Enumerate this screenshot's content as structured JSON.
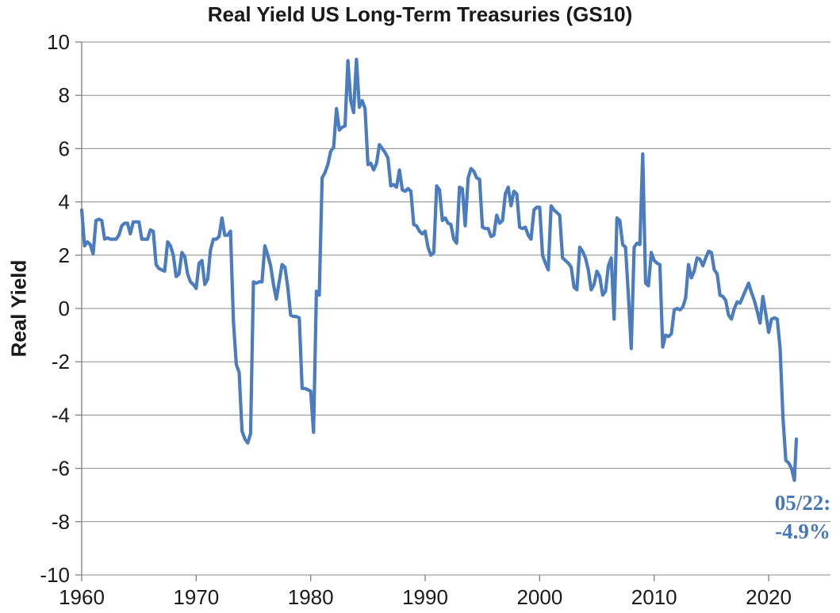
{
  "chart_data": {
    "type": "line",
    "title": "Real Yield US Long-Term Treasuries (GS10)",
    "xlabel": "",
    "ylabel": "Real Yield",
    "x_ticks": [
      1960,
      1970,
      1980,
      1990,
      2000,
      2010,
      2020
    ],
    "y_ticks": [
      10,
      8,
      6,
      4,
      2,
      0,
      -2,
      -4,
      -6,
      -8,
      -10
    ],
    "xlim": [
      1960,
      2025.4
    ],
    "ylim": [
      -10,
      10
    ],
    "grid": "horizontal",
    "legend": "none",
    "colors": {
      "line": "#4B7CBE",
      "grid": "#8A8A8A",
      "axis": "#7F7F7F",
      "text": "#1A1A1A",
      "annotation": "#4677B8"
    },
    "annotation": {
      "line1": "05/22:",
      "line2": "-4.9%",
      "x": 2022.42,
      "y": -4.9
    },
    "series": [
      {
        "name": "Real Yield",
        "points": [
          [
            1960.0,
            3.7
          ],
          [
            1960.25,
            2.35
          ],
          [
            1960.5,
            2.5
          ],
          [
            1960.75,
            2.4
          ],
          [
            1961.0,
            2.05
          ],
          [
            1961.25,
            3.3
          ],
          [
            1961.5,
            3.35
          ],
          [
            1961.75,
            3.3
          ],
          [
            1962.0,
            2.6
          ],
          [
            1962.25,
            2.65
          ],
          [
            1962.5,
            2.6
          ],
          [
            1962.75,
            2.6
          ],
          [
            1963.0,
            2.6
          ],
          [
            1963.25,
            2.75
          ],
          [
            1963.5,
            3.1
          ],
          [
            1963.75,
            3.2
          ],
          [
            1964.0,
            3.2
          ],
          [
            1964.25,
            2.8
          ],
          [
            1964.5,
            3.25
          ],
          [
            1964.75,
            3.25
          ],
          [
            1965.0,
            3.25
          ],
          [
            1965.25,
            2.6
          ],
          [
            1965.5,
            2.6
          ],
          [
            1965.75,
            2.6
          ],
          [
            1966.0,
            2.95
          ],
          [
            1966.25,
            2.9
          ],
          [
            1966.5,
            1.65
          ],
          [
            1966.75,
            1.5
          ],
          [
            1967.0,
            1.45
          ],
          [
            1967.25,
            1.4
          ],
          [
            1967.5,
            2.5
          ],
          [
            1967.75,
            2.35
          ],
          [
            1968.0,
            2.0
          ],
          [
            1968.25,
            1.2
          ],
          [
            1968.5,
            1.3
          ],
          [
            1968.75,
            2.1
          ],
          [
            1969.0,
            1.95
          ],
          [
            1969.25,
            1.3
          ],
          [
            1969.5,
            1.0
          ],
          [
            1969.75,
            0.9
          ],
          [
            1970.0,
            0.75
          ],
          [
            1970.25,
            1.7
          ],
          [
            1970.5,
            1.8
          ],
          [
            1970.75,
            0.9
          ],
          [
            1971.0,
            1.1
          ],
          [
            1971.25,
            2.2
          ],
          [
            1971.5,
            2.6
          ],
          [
            1971.75,
            2.6
          ],
          [
            1972.0,
            2.7
          ],
          [
            1972.25,
            3.4
          ],
          [
            1972.5,
            2.75
          ],
          [
            1972.75,
            2.75
          ],
          [
            1973.0,
            2.9
          ],
          [
            1973.25,
            -0.5
          ],
          [
            1973.5,
            -2.1
          ],
          [
            1973.75,
            -2.4
          ],
          [
            1974.0,
            -4.6
          ],
          [
            1974.25,
            -4.9
          ],
          [
            1974.5,
            -5.05
          ],
          [
            1974.75,
            -4.7
          ],
          [
            1975.0,
            1.0
          ],
          [
            1975.25,
            0.95
          ],
          [
            1975.5,
            1.0
          ],
          [
            1975.75,
            1.0
          ],
          [
            1976.0,
            2.35
          ],
          [
            1976.25,
            2.0
          ],
          [
            1976.5,
            1.6
          ],
          [
            1976.75,
            0.9
          ],
          [
            1977.0,
            0.35
          ],
          [
            1977.25,
            1.0
          ],
          [
            1977.5,
            1.65
          ],
          [
            1977.75,
            1.55
          ],
          [
            1978.0,
            0.8
          ],
          [
            1978.25,
            -0.25
          ],
          [
            1978.5,
            -0.3
          ],
          [
            1978.75,
            -0.3
          ],
          [
            1979.0,
            -0.35
          ],
          [
            1979.25,
            -3.0
          ],
          [
            1979.5,
            -3.0
          ],
          [
            1979.75,
            -3.05
          ],
          [
            1980.0,
            -3.1
          ],
          [
            1980.25,
            -4.65
          ],
          [
            1980.5,
            0.65
          ],
          [
            1980.75,
            0.5
          ],
          [
            1981.0,
            4.9
          ],
          [
            1981.25,
            5.1
          ],
          [
            1981.5,
            5.4
          ],
          [
            1981.75,
            5.9
          ],
          [
            1982.0,
            6.05
          ],
          [
            1982.25,
            7.5
          ],
          [
            1982.5,
            6.7
          ],
          [
            1982.75,
            6.8
          ],
          [
            1983.0,
            6.85
          ],
          [
            1983.25,
            9.3
          ],
          [
            1983.5,
            7.8
          ],
          [
            1983.75,
            7.35
          ],
          [
            1984.0,
            9.35
          ],
          [
            1984.25,
            7.55
          ],
          [
            1984.5,
            7.8
          ],
          [
            1984.75,
            7.5
          ],
          [
            1985.0,
            5.4
          ],
          [
            1985.25,
            5.45
          ],
          [
            1985.5,
            5.2
          ],
          [
            1985.75,
            5.45
          ],
          [
            1986.0,
            6.15
          ],
          [
            1986.25,
            6.0
          ],
          [
            1986.5,
            5.85
          ],
          [
            1986.75,
            5.65
          ],
          [
            1987.0,
            4.6
          ],
          [
            1987.25,
            4.65
          ],
          [
            1987.5,
            4.55
          ],
          [
            1987.75,
            5.2
          ],
          [
            1988.0,
            4.45
          ],
          [
            1988.25,
            4.4
          ],
          [
            1988.5,
            4.5
          ],
          [
            1988.75,
            4.4
          ],
          [
            1989.0,
            3.15
          ],
          [
            1989.25,
            3.1
          ],
          [
            1989.5,
            2.9
          ],
          [
            1989.75,
            2.8
          ],
          [
            1990.0,
            2.9
          ],
          [
            1990.25,
            2.3
          ],
          [
            1990.5,
            2.0
          ],
          [
            1990.75,
            2.1
          ],
          [
            1991.0,
            4.6
          ],
          [
            1991.25,
            4.45
          ],
          [
            1991.5,
            3.3
          ],
          [
            1991.75,
            3.4
          ],
          [
            1992.0,
            3.2
          ],
          [
            1992.25,
            3.15
          ],
          [
            1992.5,
            2.6
          ],
          [
            1992.75,
            2.45
          ],
          [
            1993.0,
            4.55
          ],
          [
            1993.25,
            4.5
          ],
          [
            1993.5,
            3.1
          ],
          [
            1993.75,
            4.9
          ],
          [
            1994.0,
            5.25
          ],
          [
            1994.25,
            5.15
          ],
          [
            1994.5,
            4.9
          ],
          [
            1994.75,
            4.85
          ],
          [
            1995.0,
            3.05
          ],
          [
            1995.25,
            3.0
          ],
          [
            1995.5,
            3.0
          ],
          [
            1995.75,
            2.7
          ],
          [
            1996.0,
            2.75
          ],
          [
            1996.25,
            3.5
          ],
          [
            1996.5,
            3.2
          ],
          [
            1996.75,
            3.3
          ],
          [
            1997.0,
            4.3
          ],
          [
            1997.25,
            4.55
          ],
          [
            1997.5,
            3.85
          ],
          [
            1997.75,
            4.4
          ],
          [
            1998.0,
            4.3
          ],
          [
            1998.25,
            3.05
          ],
          [
            1998.5,
            3.0
          ],
          [
            1998.75,
            3.05
          ],
          [
            1999.0,
            2.75
          ],
          [
            1999.25,
            2.6
          ],
          [
            1999.5,
            3.7
          ],
          [
            1999.75,
            3.8
          ],
          [
            2000.0,
            3.8
          ],
          [
            2000.25,
            2.0
          ],
          [
            2000.5,
            1.7
          ],
          [
            2000.75,
            1.45
          ],
          [
            2001.0,
            3.85
          ],
          [
            2001.25,
            3.7
          ],
          [
            2001.5,
            3.6
          ],
          [
            2001.75,
            3.5
          ],
          [
            2002.0,
            1.9
          ],
          [
            2002.25,
            1.8
          ],
          [
            2002.5,
            1.7
          ],
          [
            2002.75,
            1.55
          ],
          [
            2003.0,
            0.8
          ],
          [
            2003.25,
            0.7
          ],
          [
            2003.5,
            2.3
          ],
          [
            2003.75,
            2.15
          ],
          [
            2004.0,
            1.9
          ],
          [
            2004.25,
            1.45
          ],
          [
            2004.5,
            0.7
          ],
          [
            2004.75,
            0.9
          ],
          [
            2005.0,
            1.4
          ],
          [
            2005.25,
            1.2
          ],
          [
            2005.5,
            0.5
          ],
          [
            2005.75,
            0.65
          ],
          [
            2006.0,
            1.6
          ],
          [
            2006.25,
            1.9
          ],
          [
            2006.5,
            -0.4
          ],
          [
            2006.75,
            3.4
          ],
          [
            2007.0,
            3.3
          ],
          [
            2007.25,
            2.4
          ],
          [
            2007.5,
            2.3
          ],
          [
            2007.75,
            0.5
          ],
          [
            2008.0,
            -1.5
          ],
          [
            2008.25,
            2.3
          ],
          [
            2008.5,
            2.45
          ],
          [
            2008.75,
            2.4
          ],
          [
            2009.0,
            5.8
          ],
          [
            2009.25,
            0.95
          ],
          [
            2009.5,
            0.85
          ],
          [
            2009.75,
            2.1
          ],
          [
            2010.0,
            1.8
          ],
          [
            2010.25,
            1.7
          ],
          [
            2010.5,
            1.65
          ],
          [
            2010.75,
            -1.45
          ],
          [
            2011.0,
            -1.0
          ],
          [
            2011.25,
            -1.05
          ],
          [
            2011.5,
            -0.95
          ],
          [
            2011.75,
            -0.05
          ],
          [
            2012.0,
            0.0
          ],
          [
            2012.25,
            -0.05
          ],
          [
            2012.5,
            0.05
          ],
          [
            2012.75,
            0.4
          ],
          [
            2013.0,
            1.65
          ],
          [
            2013.25,
            1.15
          ],
          [
            2013.5,
            1.4
          ],
          [
            2013.75,
            1.9
          ],
          [
            2014.0,
            1.85
          ],
          [
            2014.25,
            1.6
          ],
          [
            2014.5,
            1.9
          ],
          [
            2014.75,
            2.15
          ],
          [
            2015.0,
            2.1
          ],
          [
            2015.25,
            1.45
          ],
          [
            2015.5,
            1.3
          ],
          [
            2015.75,
            0.5
          ],
          [
            2016.0,
            0.45
          ],
          [
            2016.25,
            0.3
          ],
          [
            2016.5,
            -0.25
          ],
          [
            2016.75,
            -0.4
          ],
          [
            2017.0,
            0.0
          ],
          [
            2017.25,
            0.25
          ],
          [
            2017.5,
            0.2
          ],
          [
            2017.75,
            0.45
          ],
          [
            2018.0,
            0.7
          ],
          [
            2018.25,
            0.95
          ],
          [
            2018.5,
            0.6
          ],
          [
            2018.75,
            0.3
          ],
          [
            2019.0,
            -0.1
          ],
          [
            2019.25,
            -0.55
          ],
          [
            2019.5,
            0.45
          ],
          [
            2019.75,
            -0.2
          ],
          [
            2020.0,
            -0.9
          ],
          [
            2020.25,
            -0.4
          ],
          [
            2020.5,
            -0.35
          ],
          [
            2020.75,
            -0.4
          ],
          [
            2021.0,
            -1.5
          ],
          [
            2021.25,
            -4.1
          ],
          [
            2021.5,
            -5.7
          ],
          [
            2021.75,
            -5.8
          ],
          [
            2022.0,
            -6.0
          ],
          [
            2022.25,
            -6.45
          ],
          [
            2022.42,
            -4.9
          ]
        ]
      }
    ]
  }
}
